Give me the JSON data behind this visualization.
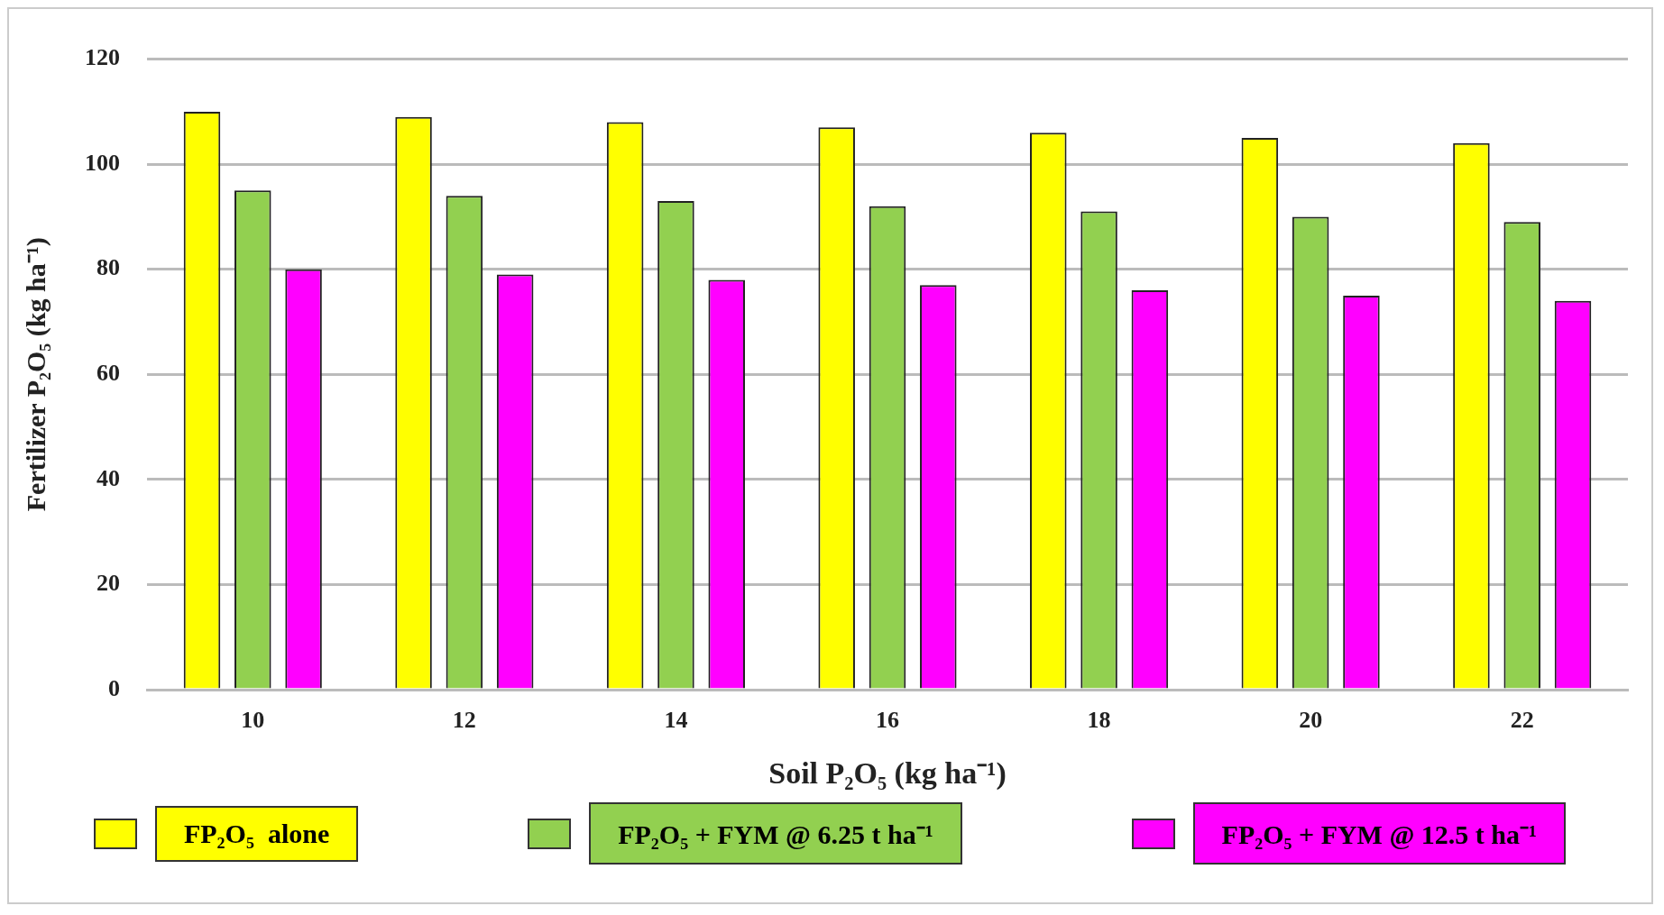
{
  "chart_data": {
    "type": "bar",
    "xlabel": "Soil P₂O₅ (kg ha⁻¹)",
    "ylabel": "Fertilizer P₂O₅ (kg ha⁻¹)",
    "categories": [
      "10",
      "12",
      "14",
      "16",
      "18",
      "20",
      "22"
    ],
    "series": [
      {
        "name": "FP₂O₅  alone",
        "color": "#ffff00",
        "values": [
          110,
          109,
          108,
          107,
          106,
          105,
          104
        ]
      },
      {
        "name": "FP₂O₅ + FYM @ 6.25 t ha⁻¹",
        "color": "#92d050",
        "values": [
          95,
          94,
          93,
          92,
          91,
          90,
          89
        ]
      },
      {
        "name": "FP₂O₅ + FYM @ 12.5 t ha⁻¹",
        "color": "#ff00ff",
        "values": [
          80,
          79,
          78,
          77,
          76,
          75,
          74
        ]
      }
    ],
    "ylim": [
      0,
      120
    ],
    "yticks": [
      0,
      20,
      40,
      60,
      80,
      100,
      120
    ],
    "grid": "y",
    "legend": "bottom"
  }
}
